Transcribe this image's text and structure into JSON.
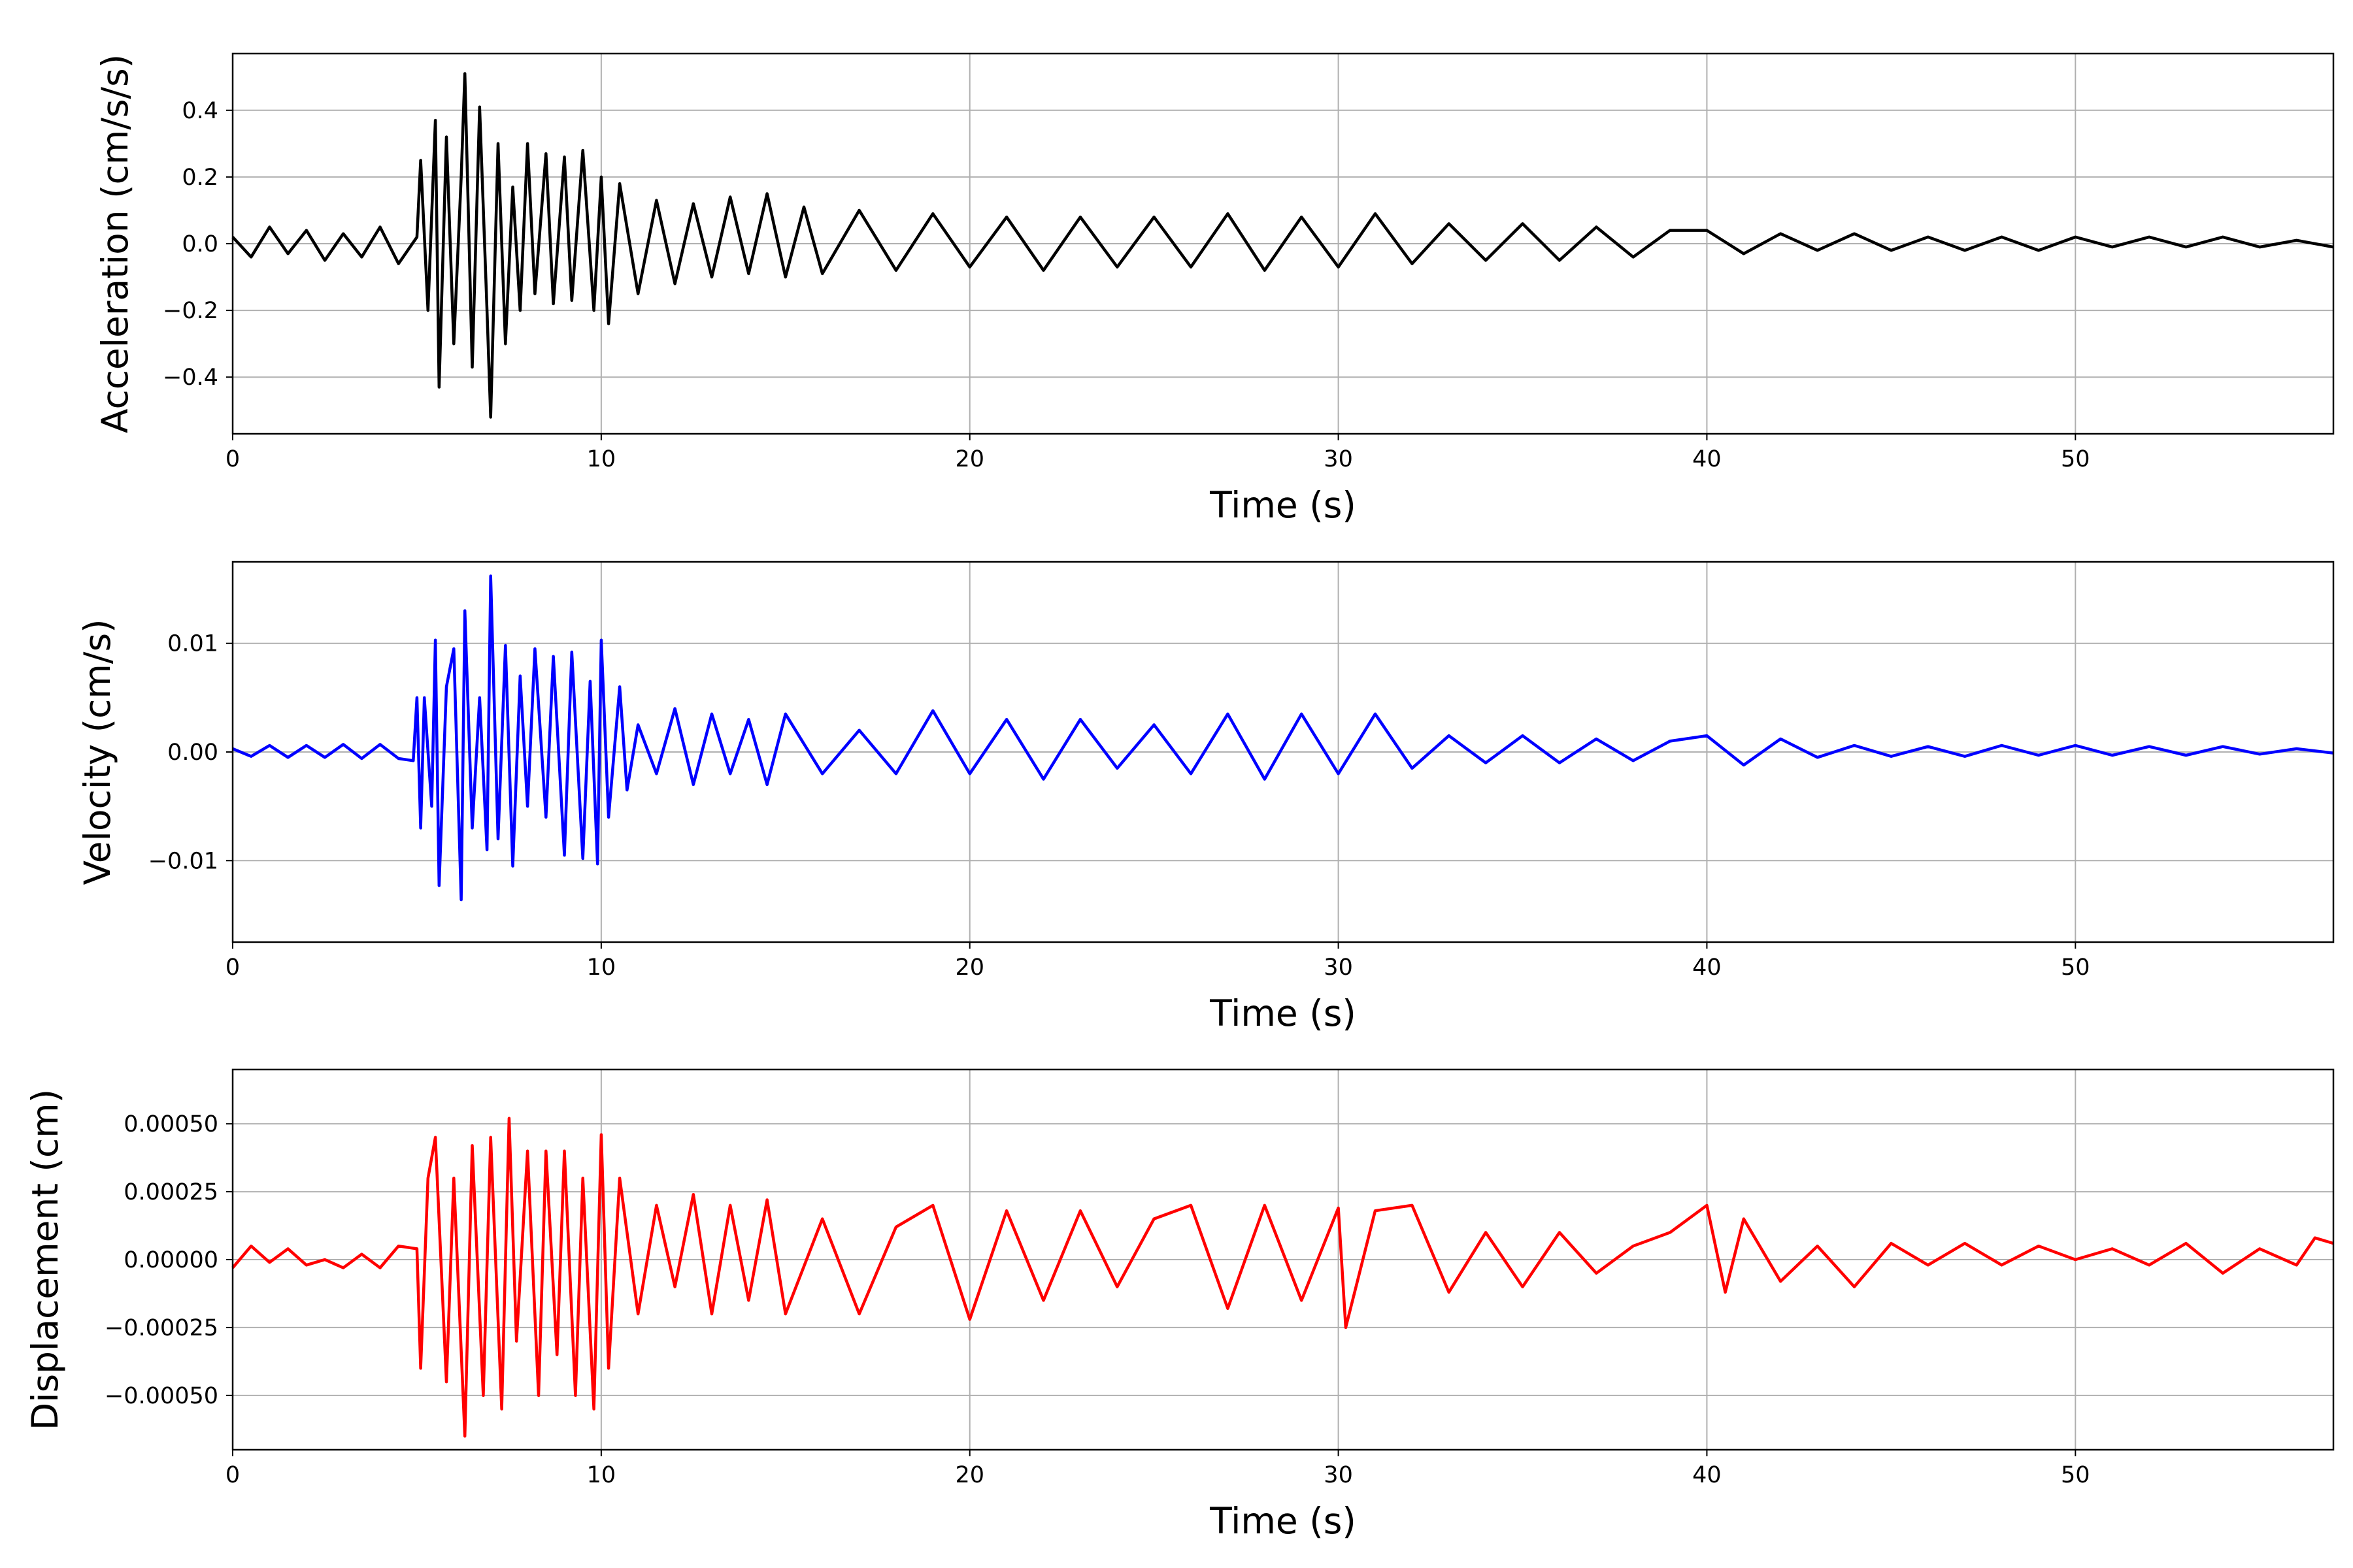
{
  "chart_data": [
    {
      "type": "line",
      "title": "",
      "xlabel": "Time (s)",
      "ylabel": "Acceleration (cm/s/s)",
      "xlim": [
        0,
        57
      ],
      "ylim": [
        -0.57,
        0.57
      ],
      "xticks": [
        0,
        10,
        20,
        30,
        40,
        50
      ],
      "xtick_labels": [
        "0",
        "10",
        "20",
        "30",
        "40",
        "50"
      ],
      "yticks": [
        0.4,
        0.2,
        0.0,
        -0.2,
        -0.4
      ],
      "ytick_labels": [
        "0.4",
        "0.2",
        "0.0",
        "−0.2",
        "−0.4"
      ],
      "grid": true,
      "color": "#000000",
      "series": [
        {
          "x": [
            0,
            0.5,
            1,
            1.5,
            2,
            2.5,
            3,
            3.5,
            4,
            4.5,
            5,
            5.1,
            5.3,
            5.5,
            5.6,
            5.8,
            6.0,
            6.2,
            6.3,
            6.5,
            6.7,
            6.9,
            7.0,
            7.2,
            7.4,
            7.6,
            7.8,
            8.0,
            8.2,
            8.5,
            8.7,
            9.0,
            9.2,
            9.5,
            9.8,
            10.0,
            10.2,
            10.5,
            11.0,
            11.5,
            12.0,
            12.5,
            13.0,
            13.5,
            14.0,
            14.5,
            15.0,
            15.5,
            16.0,
            17.0,
            18.0,
            19.0,
            20.0,
            21.0,
            22.0,
            23.0,
            24.0,
            25.0,
            26.0,
            27.0,
            28.0,
            29.0,
            30.0,
            31.0,
            32.0,
            33.0,
            34.0,
            35.0,
            36.0,
            37.0,
            38.0,
            39.0,
            40.0,
            41.0,
            42.0,
            43.0,
            44.0,
            45.0,
            46.0,
            47.0,
            48.0,
            49.0,
            50.0,
            51.0,
            52.0,
            53.0,
            54.0,
            55.0,
            56.0,
            57.0
          ],
          "y": [
            0.02,
            -0.04,
            0.05,
            -0.03,
            0.04,
            -0.05,
            0.03,
            -0.04,
            0.05,
            -0.06,
            0.02,
            0.25,
            -0.2,
            0.37,
            -0.43,
            0.32,
            -0.3,
            0.2,
            0.51,
            -0.37,
            0.41,
            -0.2,
            -0.52,
            0.3,
            -0.3,
            0.17,
            -0.2,
            0.3,
            -0.15,
            0.27,
            -0.18,
            0.26,
            -0.17,
            0.28,
            -0.2,
            0.2,
            -0.24,
            0.18,
            -0.15,
            0.13,
            -0.12,
            0.12,
            -0.1,
            0.14,
            -0.09,
            0.15,
            -0.1,
            0.11,
            -0.09,
            0.1,
            -0.08,
            0.09,
            -0.07,
            0.08,
            -0.08,
            0.08,
            -0.07,
            0.08,
            -0.07,
            0.09,
            -0.08,
            0.08,
            -0.07,
            0.09,
            -0.06,
            0.06,
            -0.05,
            0.06,
            -0.05,
            0.05,
            -0.04,
            0.04,
            0.04,
            -0.03,
            0.03,
            -0.02,
            0.03,
            -0.02,
            0.02,
            -0.02,
            0.02,
            -0.02,
            0.02,
            -0.01,
            0.02,
            -0.01,
            0.02,
            -0.01,
            0.01,
            -0.01
          ]
        }
      ]
    },
    {
      "type": "line",
      "title": "",
      "xlabel": "Time (s)",
      "ylabel": "Velocity (cm/s)",
      "xlim": [
        0,
        57
      ],
      "ylim": [
        -0.0175,
        0.0175
      ],
      "xticks": [
        0,
        10,
        20,
        30,
        40,
        50
      ],
      "xtick_labels": [
        "0",
        "10",
        "20",
        "30",
        "40",
        "50"
      ],
      "yticks": [
        0.01,
        0.0,
        -0.01
      ],
      "ytick_labels": [
        "0.01",
        "0.00",
        "−0.01"
      ],
      "grid": true,
      "color": "#0000ff",
      "series": [
        {
          "x": [
            0,
            0.5,
            1,
            1.5,
            2,
            2.5,
            3,
            3.5,
            4,
            4.5,
            4.9,
            5.0,
            5.1,
            5.2,
            5.4,
            5.5,
            5.6,
            5.8,
            6.0,
            6.2,
            6.3,
            6.5,
            6.7,
            6.9,
            7.0,
            7.2,
            7.4,
            7.6,
            7.8,
            8.0,
            8.2,
            8.5,
            8.7,
            9.0,
            9.2,
            9.5,
            9.7,
            9.9,
            10.0,
            10.2,
            10.5,
            10.7,
            11.0,
            11.5,
            12.0,
            12.5,
            13.0,
            13.5,
            14.0,
            14.5,
            15.0,
            16.0,
            17.0,
            18.0,
            19.0,
            20.0,
            21.0,
            22.0,
            23.0,
            24.0,
            25.0,
            26.0,
            27.0,
            28.0,
            29.0,
            30.0,
            31.0,
            32.0,
            33.0,
            34.0,
            35.0,
            36.0,
            37.0,
            38.0,
            39.0,
            40.0,
            41.0,
            42.0,
            43.0,
            44.0,
            45.0,
            46.0,
            47.0,
            48.0,
            49.0,
            50.0,
            51.0,
            52.0,
            53.0,
            54.0,
            55.0,
            56.0,
            57.0
          ],
          "y": [
            0.0003,
            -0.0004,
            0.0006,
            -0.0005,
            0.0006,
            -0.0005,
            0.0007,
            -0.0006,
            0.0007,
            -0.0006,
            -0.0008,
            0.005,
            -0.007,
            0.005,
            -0.005,
            0.0103,
            -0.0123,
            0.006,
            0.0095,
            -0.0136,
            0.013,
            -0.007,
            0.005,
            -0.009,
            0.0162,
            -0.008,
            0.0098,
            -0.0105,
            0.007,
            -0.005,
            0.0095,
            -0.006,
            0.0088,
            -0.0095,
            0.0092,
            -0.0098,
            0.0065,
            -0.0103,
            0.0103,
            -0.006,
            0.006,
            -0.0035,
            0.0025,
            -0.002,
            0.004,
            -0.003,
            0.0035,
            -0.002,
            0.003,
            -0.003,
            0.0035,
            -0.002,
            0.002,
            -0.002,
            0.0038,
            -0.002,
            0.003,
            -0.0025,
            0.003,
            -0.0015,
            0.0025,
            -0.002,
            0.0035,
            -0.0025,
            0.0035,
            -0.002,
            0.0035,
            -0.0015,
            0.0015,
            -0.001,
            0.0015,
            -0.001,
            0.0012,
            -0.0008,
            0.001,
            0.0015,
            -0.0012,
            0.0012,
            -0.0005,
            0.0006,
            -0.0004,
            0.0005,
            -0.0004,
            0.0006,
            -0.0003,
            0.0006,
            -0.0003,
            0.0005,
            -0.0003,
            0.0005,
            -0.0002,
            0.0003,
            -0.0001
          ]
        }
      ]
    },
    {
      "type": "line",
      "title": "",
      "xlabel": "Time (s)",
      "ylabel": "Displacement (cm)",
      "xlim": [
        0,
        57
      ],
      "ylim": [
        -0.0007,
        0.0007
      ],
      "xticks": [
        0,
        10,
        20,
        30,
        40,
        50
      ],
      "xtick_labels": [
        "0",
        "10",
        "20",
        "30",
        "40",
        "50"
      ],
      "yticks": [
        0.0005,
        0.00025,
        0.0,
        -0.00025,
        -0.0005
      ],
      "ytick_labels": [
        "0.00050",
        "0.00025",
        "0.00000",
        "−0.00025",
        "−0.00050"
      ],
      "grid": true,
      "color": "#ff0000",
      "series": [
        {
          "x": [
            0,
            0.5,
            1,
            1.5,
            2,
            2.5,
            3,
            3.5,
            4,
            4.5,
            5.0,
            5.1,
            5.3,
            5.5,
            5.8,
            6.0,
            6.3,
            6.5,
            6.8,
            7.0,
            7.3,
            7.5,
            7.7,
            8.0,
            8.3,
            8.5,
            8.8,
            9.0,
            9.3,
            9.5,
            9.8,
            10.0,
            10.2,
            10.5,
            11.0,
            11.5,
            12.0,
            12.5,
            13.0,
            13.5,
            14.0,
            14.5,
            15.0,
            16.0,
            17.0,
            18.0,
            19.0,
            20.0,
            21.0,
            22.0,
            23.0,
            24.0,
            25.0,
            26.0,
            27.0,
            28.0,
            29.0,
            30.0,
            30.2,
            31.0,
            32.0,
            33.0,
            34.0,
            35.0,
            36.0,
            37.0,
            38.0,
            39.0,
            40.0,
            40.5,
            41.0,
            42.0,
            43.0,
            44.0,
            45.0,
            46.0,
            47.0,
            48.0,
            49.0,
            50.0,
            51.0,
            52.0,
            53.0,
            54.0,
            55.0,
            56.0,
            56.5,
            57.0
          ],
          "y": [
            -3e-05,
            5e-05,
            -1e-05,
            4e-05,
            -2e-05,
            0.0,
            -3e-05,
            2e-05,
            -3e-05,
            5e-05,
            4e-05,
            -0.0004,
            0.0003,
            0.00045,
            -0.00045,
            0.0003,
            -0.00065,
            0.00042,
            -0.0005,
            0.00045,
            -0.00055,
            0.00052,
            -0.0003,
            0.0004,
            -0.0005,
            0.0004,
            -0.00035,
            0.0004,
            -0.0005,
            0.0003,
            -0.00055,
            0.00046,
            -0.0004,
            0.0003,
            -0.0002,
            0.0002,
            -0.0001,
            0.00024,
            -0.0002,
            0.0002,
            -0.00015,
            0.00022,
            -0.0002,
            0.00015,
            -0.0002,
            0.00012,
            0.0002,
            -0.00022,
            0.00018,
            -0.00015,
            0.00018,
            -0.0001,
            0.00015,
            0.0002,
            -0.00018,
            0.0002,
            -0.00015,
            0.00019,
            -0.00025,
            0.00018,
            0.0002,
            -0.00012,
            0.0001,
            -0.0001,
            0.0001,
            -5e-05,
            5e-05,
            0.0001,
            0.0002,
            -0.00012,
            0.00015,
            -8e-05,
            5e-05,
            -0.0001,
            6e-05,
            -2e-05,
            6e-05,
            -2e-05,
            5e-05,
            0.0,
            4e-05,
            -2e-05,
            6e-05,
            -5e-05,
            4e-05,
            -2e-05,
            8e-05,
            6e-05
          ]
        }
      ]
    }
  ]
}
